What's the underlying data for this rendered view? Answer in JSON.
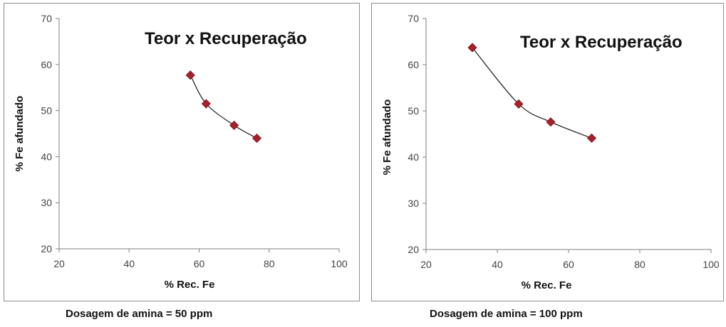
{
  "chart_data": [
    {
      "type": "scatter",
      "title": "Teor x Recuperação",
      "xlabel": "% Rec. Fe",
      "ylabel": "% Fe afundado",
      "xlim": [
        20,
        100
      ],
      "ylim": [
        20,
        70
      ],
      "xticks": [
        "20",
        "40",
        "60",
        "80",
        "100"
      ],
      "yticks": [
        "20",
        "30",
        "40",
        "50",
        "60",
        "70"
      ],
      "series": [
        {
          "x": [
            57.5,
            62,
            70,
            76.5
          ],
          "y": [
            57.7,
            51.5,
            46.8,
            44.0
          ]
        }
      ],
      "line": "smooth",
      "marker": "diamond",
      "marker_color": "#a8202a",
      "grid": false,
      "caption": "Dosagem de amina = 50 ppm"
    },
    {
      "type": "scatter",
      "title": "Teor x Recuperação",
      "xlabel": "% Rec. Fe",
      "ylabel": "% Fe afundado",
      "xlim": [
        20,
        100
      ],
      "ylim": [
        20,
        70
      ],
      "xticks": [
        "20",
        "40",
        "60",
        "80",
        "100"
      ],
      "yticks": [
        "20",
        "30",
        "40",
        "50",
        "60",
        "70"
      ],
      "series": [
        {
          "x": [
            33,
            46,
            55,
            66.5
          ],
          "y": [
            63.7,
            51.5,
            47.6,
            44.1
          ]
        }
      ],
      "line": "smooth",
      "marker": "diamond",
      "marker_color": "#a8202a",
      "grid": false,
      "caption": "Dosagem de amina = 100 ppm"
    }
  ]
}
